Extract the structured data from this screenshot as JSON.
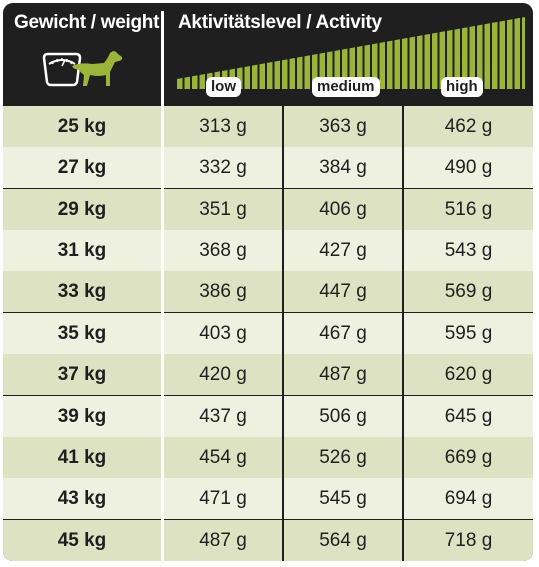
{
  "header": {
    "weight_title": "Gewicht / weight",
    "activity_title": "Aktivitätslevel / Activity",
    "levels": [
      "low",
      "medium",
      "high"
    ],
    "icon": "dog-on-scale-icon",
    "accent_color": "#9ab53a"
  },
  "columns": [
    "weight",
    "low",
    "medium",
    "high"
  ],
  "rows": [
    [
      "25 kg",
      "313 g",
      "363 g",
      "462 g"
    ],
    [
      "27 kg",
      "332 g",
      "384 g",
      "490 g"
    ],
    [
      "29 kg",
      "351 g",
      "406 g",
      "516 g"
    ],
    [
      "31 kg",
      "368 g",
      "427 g",
      "543 g"
    ],
    [
      "33 kg",
      "386 g",
      "447 g",
      "569 g"
    ],
    [
      "35 kg",
      "403 g",
      "467 g",
      "595 g"
    ],
    [
      "37 kg",
      "420 g",
      "487 g",
      "620 g"
    ],
    [
      "39 kg",
      "437 g",
      "506 g",
      "645 g"
    ],
    [
      "41 kg",
      "454 g",
      "526 g",
      "669 g"
    ],
    [
      "43 kg",
      "471 g",
      "545 g",
      "694 g"
    ],
    [
      "45 kg",
      "487 g",
      "564 g",
      "718 g"
    ]
  ]
}
